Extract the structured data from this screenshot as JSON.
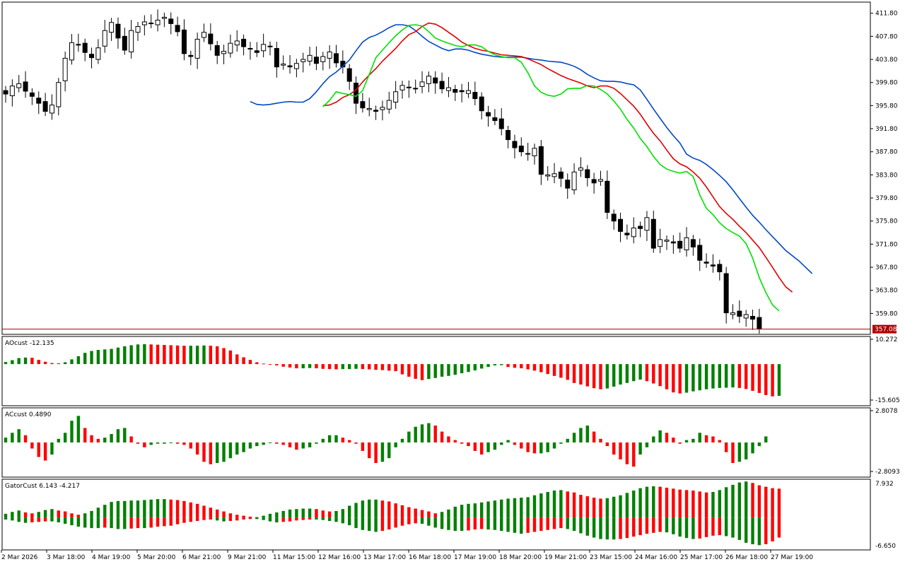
{
  "colors": {
    "bull": "#008000",
    "bear": "#ff0000",
    "jaw": "#0047c8",
    "teeth": "#e00000",
    "lips": "#00e000",
    "candle": "#000000",
    "fractal": "#a0a0a0",
    "price_line": "#b00000"
  },
  "chart_data": [
    {
      "id": "price",
      "type": "candlestick",
      "y_ticks": [
        "411.80",
        "407.80",
        "403.80",
        "399.80",
        "395.80",
        "391.80",
        "387.80",
        "383.80",
        "379.80",
        "375.80",
        "371.80",
        "367.80",
        "363.80",
        "359.80"
      ],
      "ylim": [
        356.3,
        413.6
      ],
      "current_price_label": "357.08",
      "current_price": 357.08,
      "close": [
        397.8,
        399.2,
        399.6,
        398.3,
        397.4,
        396.2,
        394.8,
        395.9,
        399.8,
        404.0,
        406.7,
        406.3,
        405.0,
        404.1,
        405.8,
        408.8,
        410.2,
        407.5,
        405.4,
        408.8,
        409.5,
        410.3,
        410.1,
        410.6,
        411.1,
        410.0,
        408.6,
        404.8,
        404.3,
        407.3,
        408.5,
        406.5,
        404.5,
        405.2,
        406.6,
        407.0,
        406.0,
        405.6,
        405.0,
        406.4,
        406.0,
        402.5,
        403.0,
        402.5,
        403.1,
        403.8,
        404.5,
        403.1,
        404.3,
        405.1,
        403.2,
        402.5,
        400.0,
        396.2,
        395.4,
        395.3,
        394.8,
        395.5,
        396.7,
        398.2,
        399.3,
        399.0,
        398.8,
        399.9,
        400.9,
        399.7,
        398.7,
        398.9,
        398.1,
        398.2,
        398.4,
        397.0,
        394.9,
        394.0,
        393.2,
        391.8,
        389.9,
        388.5,
        387.8,
        387.4,
        388.4,
        383.9,
        383.8,
        384.0,
        383.2,
        381.5,
        384.3,
        385.0,
        383.3,
        382.4,
        383.0,
        377.3,
        375.8,
        374.0,
        373.4,
        374.6,
        374.5,
        376.4,
        371.1,
        372.6,
        372.5,
        372.0,
        371.1,
        372.9,
        371.3,
        369.0,
        368.5,
        368.0,
        367.0,
        359.9,
        359.9,
        359.3,
        359.6,
        358.8,
        357.1
      ],
      "alligator": {
        "jaw": [
          396.5,
          396.0,
          395.9,
          396.0,
          396.2,
          396.4,
          396.5,
          396.4,
          396.4,
          397.0,
          398.2,
          399.6,
          400.8,
          401.6,
          402.6,
          403.7,
          405.3,
          406.8,
          407.6,
          408.0,
          408.6,
          409.3,
          409.8,
          409.8,
          409.6,
          408.8,
          407.8,
          406.9,
          406.3,
          405.7,
          405.3,
          405.6,
          405.6,
          405.4,
          405.0,
          404.7,
          404.5,
          404.3,
          404.2,
          404.2,
          404.2,
          404.2,
          404.0,
          403.8,
          403.7,
          403.5,
          403.4,
          403.3,
          403.0,
          402.6,
          402.0,
          401.2,
          400.6,
          400.1,
          400.0,
          400.0,
          399.9,
          399.6,
          399.4,
          398.5,
          396.9,
          395.2,
          393.6,
          392.0,
          390.6,
          389.3,
          387.4,
          386.7,
          386.3,
          385.6,
          384.7,
          383.7,
          382.6,
          381.2,
          379.7,
          378.2,
          376.8,
          375.6,
          374.3,
          373.1,
          371.9,
          370.7,
          369.8,
          368.9,
          367.8,
          366.7
        ],
        "teeth": [
          395.8,
          395.9,
          396.4,
          397.2,
          397.7,
          398.5,
          399.9,
          401.1,
          402.2,
          403.5,
          404.6,
          405.7,
          407.0,
          408.1,
          408.6,
          409.5,
          410.1,
          409.9,
          409.3,
          408.5,
          407.7,
          406.8,
          406.2,
          405.7,
          405.4,
          405.2,
          404.9,
          404.6,
          404.5,
          404.4,
          404.3,
          403.9,
          403.4,
          402.9,
          402.2,
          401.6,
          401.0,
          400.5,
          400.1,
          399.7,
          399.2,
          398.9,
          399.2,
          399.2,
          398.8,
          397.9,
          396.8,
          395.7,
          394.3,
          392.6,
          391.0,
          389.7,
          388.1,
          386.6,
          385.7,
          385.2,
          384.3,
          383.2,
          381.7,
          380.0,
          378.3,
          377.1,
          376.1,
          374.9,
          373.8,
          372.5,
          371.2,
          369.5,
          367.8,
          366.0,
          364.4,
          363.5
        ],
        "lips": [
          395.6,
          396.7,
          398.2,
          397.9,
          397.7,
          397.4,
          398.4,
          401.2,
          404.1,
          405.4,
          406.7,
          407.9,
          408.9,
          409.7,
          409.8,
          409.6,
          408.6,
          407.5,
          407.0,
          406.6,
          406.2,
          406.0,
          406.3,
          406.3,
          406.0,
          405.2,
          404.6,
          404.3,
          404.1,
          404.1,
          403.3,
          401.5,
          399.2,
          398.1,
          397.6,
          397.4,
          397.8,
          398.7,
          398.8,
          398.8,
          399.3,
          399.2,
          398.6,
          397.8,
          396.6,
          395.2,
          393.4,
          391.9,
          390.1,
          388.7,
          387.0,
          385.6,
          384.8,
          384.4,
          384.1,
          384.4,
          383.5,
          380.3,
          378.0,
          376.9,
          375.5,
          374.5,
          373.8,
          373.2,
          371.9,
          369.4,
          366.0,
          363.4,
          361.3,
          360.2
        ]
      }
    },
    {
      "id": "ao",
      "type": "histogram",
      "label": "AOcust -12.135",
      "y_ticks": [
        "10.272",
        "-15.605"
      ],
      "ylim": [
        -15.605,
        10.272
      ],
      "values": [
        0.8,
        1.5,
        2.3,
        2.5,
        2.4,
        1.6,
        0.9,
        0.4,
        0.3,
        0.7,
        1.8,
        3.0,
        4.3,
        5.0,
        5.4,
        5.6,
        5.8,
        6.3,
        6.8,
        7.2,
        7.5,
        7.6,
        7.5,
        7.4,
        7.3,
        7.2,
        7.1,
        7.0,
        7.0,
        7.0,
        7.1,
        7.0,
        6.8,
        6.1,
        5.2,
        3.7,
        2.6,
        1.6,
        0.7,
        0.2,
        0,
        -0.5,
        -1.0,
        -1.3,
        -1.6,
        -1.6,
        -1.5,
        -1.6,
        -1.8,
        -1.9,
        -2.0,
        -1.9,
        -1.9,
        -1.8,
        -1.9,
        -2.0,
        -2.2,
        -2.3,
        -2.5,
        -2.7,
        -3.9,
        -4.8,
        -5.6,
        -6.1,
        -5.7,
        -5.3,
        -4.8,
        -4.5,
        -4.1,
        -3.5,
        -3.0,
        -2.4,
        -1.7,
        -1.1,
        -0.5,
        -0.4,
        -1.1,
        -1.4,
        -1.6,
        -2.0,
        -2.5,
        -3.1,
        -3.8,
        -4.5,
        -5.2,
        -6.0,
        -7.2,
        -7.8,
        -8.5,
        -9.2,
        -9.6,
        -9.3,
        -8.6,
        -7.8,
        -7.2,
        -6.5,
        -5.9,
        -6.5,
        -7.4,
        -8.4,
        -9.6,
        -10.8,
        -11.2,
        -10.9,
        -10.4,
        -10.0,
        -9.6,
        -9.3,
        -9.1,
        -9.0,
        -8.9,
        -9.1,
        -9.5,
        -10.2,
        -11.0,
        -11.8,
        -12.3,
        -12.1
      ]
    },
    {
      "id": "ac",
      "type": "histogram",
      "label": "ACcust 0.4890",
      "y_ticks": [
        "2.8078",
        "-2.8093"
      ],
      "ylim": [
        -2.8093,
        2.8078
      ],
      "values": [
        0.4,
        0.8,
        1.1,
        0.6,
        -0.5,
        -1.2,
        -1.5,
        -1.0,
        0.3,
        0.8,
        1.8,
        2.2,
        1.2,
        0.6,
        0.3,
        0.4,
        0.7,
        1.1,
        1.2,
        0.5,
        -0.1,
        -0.4,
        -0.2,
        -0.1,
        -0.1,
        0,
        -0.1,
        -0.2,
        -0.5,
        -1.0,
        -1.6,
        -1.8,
        -1.7,
        -1.6,
        -1.3,
        -1.0,
        -0.8,
        -0.5,
        -0.3,
        -0.2,
        0,
        -0.1,
        -0.2,
        -0.4,
        -0.6,
        -0.5,
        -0.4,
        -0.1,
        0.3,
        0.6,
        0.6,
        0.4,
        0.2,
        -0.1,
        -0.7,
        -1.3,
        -1.7,
        -1.6,
        -1.3,
        -0.4,
        0.3,
        0.9,
        1.3,
        1.5,
        1.6,
        1.4,
        0.9,
        0.5,
        0.2,
        -0.1,
        -0.3,
        -0.7,
        -1.0,
        -0.8,
        -0.6,
        -0.2,
        0.2,
        -0.2,
        -0.5,
        -0.8,
        -0.9,
        -0.9,
        -0.8,
        -0.5,
        -0.1,
        0.3,
        0.8,
        1.2,
        1.4,
        0.9,
        0.3,
        -0.3,
        -1.0,
        -1.4,
        -1.8,
        -2.0,
        -1.0,
        -0.4,
        0.5,
        1.0,
        0.8,
        0.4,
        -0.1,
        0.2,
        0.3,
        0.8,
        0.6,
        0.5,
        0.2,
        -0.8,
        -1.7,
        -1.6,
        -1.4,
        -0.9,
        -0.3,
        0.5
      ]
    },
    {
      "id": "gator",
      "type": "gator",
      "label": "GatorCust 6.143 -4.217",
      "y_ticks": [
        "7.932",
        "-6.650"
      ],
      "ylim": [
        -6.65,
        7.932
      ],
      "upper": [
        0.8,
        1.2,
        1.5,
        1.1,
        0.9,
        1.2,
        1.6,
        1.8,
        1.5,
        1.3,
        0.9,
        0.6,
        0.9,
        1.4,
        2.1,
        2.7,
        3.3,
        3.5,
        3.5,
        3.6,
        3.6,
        3.7,
        3.8,
        3.9,
        3.9,
        3.8,
        3.7,
        3.5,
        3.2,
        2.9,
        2.5,
        2.1,
        1.7,
        1.3,
        0.9,
        0.6,
        0.4,
        0.2,
        0.1,
        0.4,
        0.8,
        1.1,
        1.4,
        1.7,
        1.8,
        1.9,
        1.9,
        1.8,
        1.5,
        1.3,
        1.4,
        1.8,
        2.5,
        3.1,
        3.6,
        3.8,
        3.8,
        3.6,
        3.4,
        3.0,
        2.6,
        2.2,
        1.9,
        1.6,
        1.3,
        0.9,
        1.2,
        1.7,
        2.3,
        2.7,
        2.9,
        3.0,
        3.2,
        3.4,
        3.6,
        3.8,
        4.0,
        4.1,
        4.2,
        4.3,
        4.7,
        5.1,
        5.4,
        5.7,
        5.8,
        5.5,
        5.3,
        4.8,
        4.5,
        4.2,
        4.0,
        4.1,
        4.4,
        4.7,
        5.2,
        5.7,
        6.2,
        6.5,
        6.6,
        6.5,
        6.3,
        6.1,
        5.9,
        5.8,
        5.7,
        5.5,
        5.3,
        5.4,
        5.8,
        6.4,
        6.9,
        7.4,
        7.6,
        7.3,
        6.8,
        6.5,
        6.2,
        6.1
      ],
      "lower": [
        -0.4,
        -0.6,
        -0.9,
        -1.1,
        -1.0,
        -0.9,
        -0.8,
        -0.8,
        -1.0,
        -1.3,
        -1.6,
        -1.9,
        -2.1,
        -2.2,
        -2.2,
        -2.1,
        -2.2,
        -2.4,
        -2.4,
        -2.3,
        -2.2,
        -2.2,
        -2.1,
        -1.9,
        -1.8,
        -1.7,
        -1.4,
        -1.1,
        -0.9,
        -0.7,
        -0.5,
        -0.4,
        -0.6,
        -0.8,
        -0.7,
        -0.6,
        -0.4,
        -0.3,
        -0.3,
        -0.5,
        -0.8,
        -1.0,
        -0.9,
        -0.8,
        -0.6,
        -0.5,
        -0.4,
        -0.4,
        -0.5,
        -0.7,
        -0.9,
        -1.2,
        -1.6,
        -2.2,
        -2.6,
        -2.8,
        -3.0,
        -2.8,
        -2.5,
        -2.1,
        -1.7,
        -1.4,
        -1.2,
        -1.3,
        -1.7,
        -2.1,
        -2.4,
        -2.6,
        -2.8,
        -2.8,
        -2.7,
        -2.5,
        -2.4,
        -2.5,
        -2.6,
        -2.8,
        -3.0,
        -3.2,
        -3.4,
        -3.2,
        -3.0,
        -2.8,
        -2.6,
        -2.4,
        -2.2,
        -2.4,
        -2.8,
        -3.3,
        -3.8,
        -4.2,
        -4.5,
        -4.6,
        -4.6,
        -4.5,
        -4.3,
        -4.0,
        -3.7,
        -3.4,
        -3.2,
        -3.0,
        -3.1,
        -3.5,
        -4.0,
        -4.3,
        -4.5,
        -4.4,
        -4.1,
        -3.8,
        -3.7,
        -3.9,
        -4.2,
        -4.7,
        -5.3,
        -5.6,
        -5.8,
        -5.6,
        -5.0,
        -4.2
      ]
    }
  ],
  "time_axis": [
    "2 Mar 2026",
    "3 Mar 18:00",
    "4 Mar 19:00",
    "5 Mar 20:00",
    "6 Mar 21:00",
    "9 Mar 21:00",
    "11 Mar 15:00",
    "12 Mar 16:00",
    "13 Mar 17:00",
    "16 Mar 18:00",
    "17 Mar 19:00",
    "18 Mar 20:00",
    "19 Mar 21:00",
    "23 Mar 15:00",
    "24 Mar 16:00",
    "25 Mar 17:00",
    "26 Mar 18:00",
    "27 Mar 19:00"
  ]
}
